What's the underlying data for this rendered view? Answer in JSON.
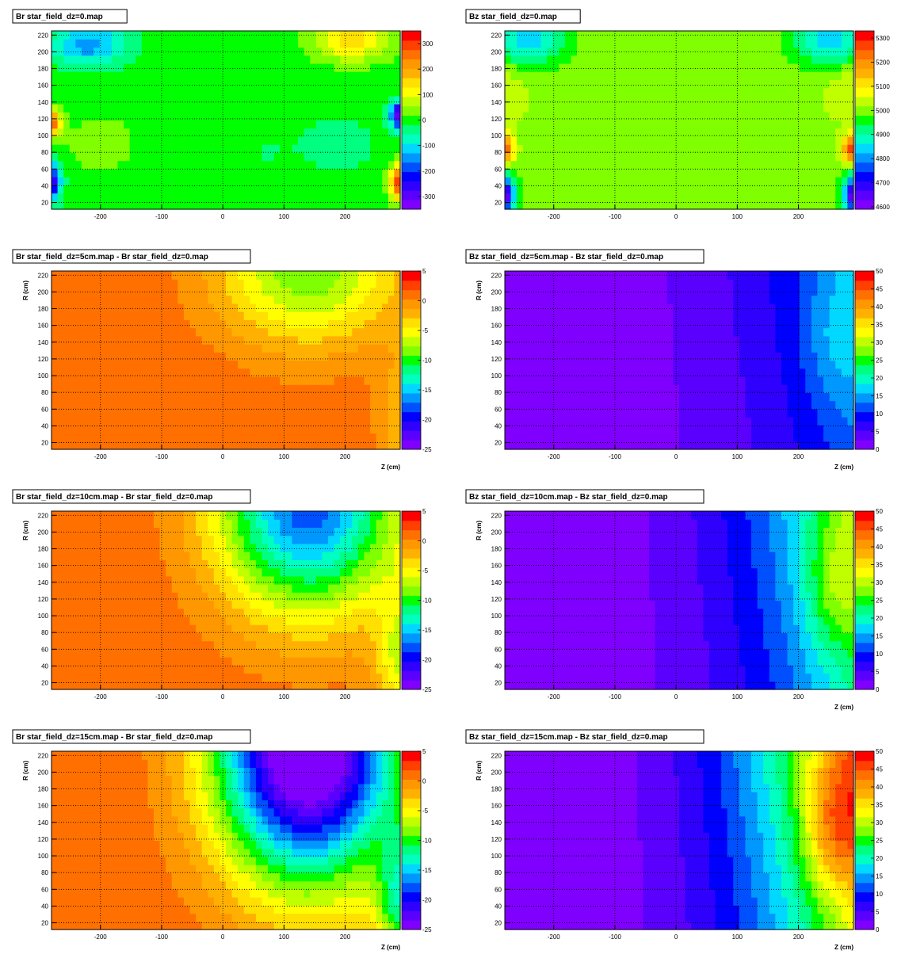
{
  "colors": {
    "palette": [
      "#8000ff",
      "#5a00ff",
      "#3000ff",
      "#0000ff",
      "#0050ff",
      "#0098ff",
      "#00d8ff",
      "#00ffc0",
      "#00ff80",
      "#00ff00",
      "#80ff00",
      "#c0ff00",
      "#ffff00",
      "#ffe000",
      "#ffb000",
      "#ff9800",
      "#ff7000",
      "#ff4000",
      "#ff0000"
    ],
    "frame": "#000000",
    "grid": "#000000"
  },
  "chart_data": [
    {
      "type": "heatmap",
      "title": "Br star_field_dz=0.map",
      "xlabel": "",
      "ylabel": "",
      "xlim": [
        -280,
        290
      ],
      "ylim": [
        12,
        225
      ],
      "xticks": [
        "-200",
        "-100",
        "0",
        "100",
        "200"
      ],
      "yticks": [
        "20",
        "40",
        "60",
        "80",
        "100",
        "120",
        "140",
        "160",
        "180",
        "200",
        "220"
      ],
      "zticks": [
        "300",
        "200",
        "100",
        "0",
        "-100",
        "-200",
        "-300"
      ],
      "zlim": [
        -350,
        350
      ],
      "grid": true,
      "field": "br0"
    },
    {
      "type": "heatmap",
      "title": "Bz star_field_dz=0.map",
      "xlabel": "",
      "ylabel": "",
      "xlim": [
        -280,
        290
      ],
      "ylim": [
        12,
        225
      ],
      "xticks": [
        "-200",
        "-100",
        "0",
        "100",
        "200"
      ],
      "yticks": [
        "20",
        "40",
        "60",
        "80",
        "100",
        "120",
        "140",
        "160",
        "180",
        "200",
        "220"
      ],
      "zticks": [
        "5300",
        "5200",
        "5100",
        "5000",
        "4900",
        "4800",
        "4700",
        "4600"
      ],
      "zlim": [
        4590,
        5330
      ],
      "grid": true,
      "field": "bz0"
    },
    {
      "type": "heatmap",
      "title": "Br star_field_dz=5cm.map - Br star_field_dz=0.map",
      "xlabel": "Z (cm)",
      "ylabel": "R (cm)",
      "xlim": [
        -280,
        290
      ],
      "ylim": [
        12,
        225
      ],
      "xticks": [
        "-200",
        "-100",
        "0",
        "100",
        "200"
      ],
      "yticks": [
        "20",
        "40",
        "60",
        "80",
        "100",
        "120",
        "140",
        "160",
        "180",
        "200",
        "220"
      ],
      "zticks": [
        "5",
        "0",
        "-5",
        "-10",
        "-15",
        "-20",
        "-25"
      ],
      "zlim": [
        -25,
        5
      ],
      "grid": true,
      "field": "brd",
      "scale": 0.35
    },
    {
      "type": "heatmap",
      "title": "Bz star_field_dz=5cm.map - Bz star_field_dz=0.map",
      "xlabel": "Z (cm)",
      "ylabel": "R (cm)",
      "xlim": [
        -280,
        290
      ],
      "ylim": [
        12,
        225
      ],
      "xticks": [
        "-200",
        "-100",
        "0",
        "100",
        "200"
      ],
      "yticks": [
        "20",
        "40",
        "60",
        "80",
        "100",
        "120",
        "140",
        "160",
        "180",
        "200",
        "220"
      ],
      "zticks": [
        "50",
        "45",
        "40",
        "35",
        "30",
        "25",
        "20",
        "15",
        "10",
        "5",
        "0"
      ],
      "zlim": [
        0,
        50
      ],
      "grid": true,
      "field": "bzd",
      "scale": 0.35
    },
    {
      "type": "heatmap",
      "title": "Br star_field_dz=10cm.map - Br star_field_dz=0.map",
      "xlabel": "",
      "ylabel": "R (cm)",
      "xlim": [
        -280,
        290
      ],
      "ylim": [
        12,
        225
      ],
      "xticks": [
        "-200",
        "-100",
        "0",
        "100",
        "200"
      ],
      "yticks": [
        "20",
        "40",
        "60",
        "80",
        "100",
        "120",
        "140",
        "160",
        "180",
        "200",
        "220"
      ],
      "zticks": [
        "5",
        "0",
        "-5",
        "-10",
        "-15",
        "-20",
        "-25"
      ],
      "zlim": [
        -25,
        5
      ],
      "grid": true,
      "field": "brd",
      "scale": 0.65
    },
    {
      "type": "heatmap",
      "title": "Bz star_field_dz=10cm.map - Bz star_field_dz=0.map",
      "xlabel": "Z (cm)",
      "ylabel": "R (cm)",
      "xlim": [
        -280,
        290
      ],
      "ylim": [
        12,
        225
      ],
      "xticks": [
        "-200",
        "-100",
        "0",
        "100",
        "200"
      ],
      "yticks": [
        "20",
        "40",
        "60",
        "80",
        "100",
        "120",
        "140",
        "160",
        "180",
        "200",
        "220"
      ],
      "zticks": [
        "50",
        "45",
        "40",
        "35",
        "30",
        "25",
        "20",
        "15",
        "10",
        "5",
        "0"
      ],
      "zlim": [
        0,
        50
      ],
      "grid": true,
      "field": "bzd",
      "scale": 0.65
    },
    {
      "type": "heatmap",
      "title": "Br star_field_dz=15cm.map - Br star_field_dz=0.map",
      "xlabel": "Z (cm)",
      "ylabel": "R (cm)",
      "xlim": [
        -280,
        290
      ],
      "ylim": [
        12,
        225
      ],
      "xticks": [
        "-200",
        "-100",
        "0",
        "100",
        "200"
      ],
      "yticks": [
        "20",
        "40",
        "60",
        "80",
        "100",
        "120",
        "140",
        "160",
        "180",
        "200",
        "220"
      ],
      "zticks": [
        "5",
        "0",
        "-5",
        "-10",
        "-15",
        "-20",
        "-25"
      ],
      "zlim": [
        -25,
        5
      ],
      "grid": true,
      "field": "brd",
      "scale": 1.0
    },
    {
      "type": "heatmap",
      "title": "Bz star_field_dz=15cm.map - Bz star_field_dz=0.map",
      "xlabel": "Z (cm)",
      "ylabel": "R (cm)",
      "xlim": [
        -280,
        290
      ],
      "ylim": [
        12,
        225
      ],
      "xticks": [
        "-200",
        "-100",
        "0",
        "100",
        "200"
      ],
      "yticks": [
        "20",
        "40",
        "60",
        "80",
        "100",
        "120",
        "140",
        "160",
        "180",
        "200",
        "220"
      ],
      "zticks": [
        "50",
        "45",
        "40",
        "35",
        "30",
        "25",
        "20",
        "15",
        "10",
        "5",
        "0"
      ],
      "zlim": [
        0,
        50
      ],
      "grid": true,
      "field": "bzd",
      "scale": 1.0
    }
  ]
}
